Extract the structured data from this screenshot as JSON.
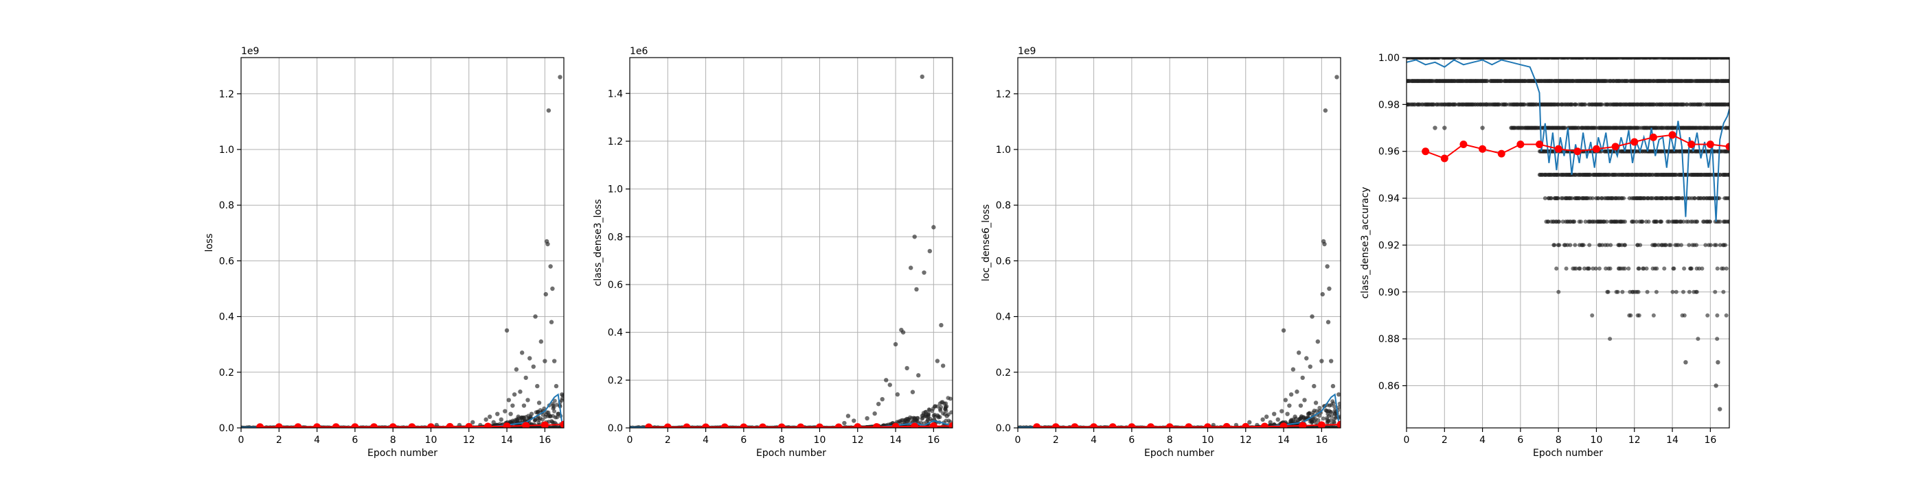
{
  "colors": {
    "scatter": "#222222",
    "line": "#1f77b4",
    "marker": "#ff0000",
    "grid": "#b0b0b0"
  },
  "chart_data": [
    {
      "type": "scatter",
      "xlabel": "Epoch number",
      "ylabel": "loss",
      "offset_label": "1e9",
      "xlim": [
        0,
        17
      ],
      "ylim": [
        0,
        1.33
      ],
      "xticks": [
        0,
        2,
        4,
        6,
        8,
        10,
        12,
        14,
        16
      ],
      "yticks": [
        0.0,
        0.2,
        0.4,
        0.6,
        0.8,
        1.0,
        1.2
      ],
      "ytick_labels": [
        "0.0",
        "0.2",
        "0.4",
        "0.6",
        "0.8",
        "1.0",
        "1.2"
      ],
      "grid": true,
      "scatter_points": [
        [
          10.3,
          0.01
        ],
        [
          11.5,
          0.01
        ],
        [
          12.2,
          0.02
        ],
        [
          12.6,
          0.01
        ],
        [
          12.9,
          0.03
        ],
        [
          13.1,
          0.04
        ],
        [
          13.3,
          0.02
        ],
        [
          13.5,
          0.05
        ],
        [
          13.7,
          0.03
        ],
        [
          13.9,
          0.06
        ],
        [
          14.0,
          0.35
        ],
        [
          14.1,
          0.1
        ],
        [
          14.2,
          0.05
        ],
        [
          14.3,
          0.08
        ],
        [
          14.4,
          0.12
        ],
        [
          14.5,
          0.21
        ],
        [
          14.6,
          0.04
        ],
        [
          14.7,
          0.13
        ],
        [
          14.8,
          0.27
        ],
        [
          14.9,
          0.08
        ],
        [
          15.0,
          0.18
        ],
        [
          15.1,
          0.1
        ],
        [
          15.2,
          0.25
        ],
        [
          15.3,
          0.05
        ],
        [
          15.4,
          0.22
        ],
        [
          15.5,
          0.4
        ],
        [
          15.6,
          0.15
        ],
        [
          15.7,
          0.09
        ],
        [
          15.8,
          0.31
        ],
        [
          15.9,
          0.06
        ],
        [
          16.0,
          0.24
        ],
        [
          16.05,
          0.48
        ],
        [
          16.1,
          0.67
        ],
        [
          16.15,
          0.66
        ],
        [
          16.2,
          1.14
        ],
        [
          16.3,
          0.58
        ],
        [
          16.35,
          0.38
        ],
        [
          16.4,
          0.5
        ],
        [
          16.5,
          0.24
        ],
        [
          16.6,
          0.15
        ],
        [
          16.7,
          0.05
        ],
        [
          16.8,
          1.26
        ],
        [
          16.9,
          0.12
        ]
      ],
      "line_series": [
        [
          0,
          0.002
        ],
        [
          13,
          0.003
        ],
        [
          14,
          0.01
        ],
        [
          15,
          0.02
        ],
        [
          15.5,
          0.04
        ],
        [
          16,
          0.06
        ],
        [
          16.3,
          0.09
        ],
        [
          16.5,
          0.11
        ],
        [
          16.7,
          0.12
        ],
        [
          16.9,
          0.02
        ]
      ],
      "marker_series": [
        [
          1,
          0.003
        ],
        [
          2,
          0.003
        ],
        [
          3,
          0.003
        ],
        [
          4,
          0.003
        ],
        [
          5,
          0.003
        ],
        [
          6,
          0.003
        ],
        [
          7,
          0.003
        ],
        [
          8,
          0.003
        ],
        [
          9,
          0.003
        ],
        [
          10,
          0.003
        ],
        [
          11,
          0.004
        ],
        [
          12,
          0.004
        ],
        [
          13,
          0.005
        ],
        [
          14,
          0.006
        ],
        [
          15,
          0.008
        ],
        [
          16,
          0.01
        ],
        [
          17,
          0.012
        ]
      ]
    },
    {
      "type": "scatter",
      "xlabel": "Epoch number",
      "ylabel": "class_dense3_loss",
      "offset_label": "1e6",
      "xlim": [
        0,
        17
      ],
      "ylim": [
        0,
        1.55
      ],
      "xticks": [
        0,
        2,
        4,
        6,
        8,
        10,
        12,
        14,
        16
      ],
      "yticks": [
        0.0,
        0.2,
        0.4,
        0.6,
        0.8,
        1.0,
        1.2,
        1.4
      ],
      "ytick_labels": [
        "0.0",
        "0.2",
        "0.4",
        "0.6",
        "0.8",
        "1.0",
        "1.2",
        "1.4"
      ],
      "grid": true,
      "scatter_points": [
        [
          11.3,
          0.02
        ],
        [
          11.5,
          0.05
        ],
        [
          11.8,
          0.03
        ],
        [
          12.0,
          0.01
        ],
        [
          12.5,
          0.04
        ],
        [
          12.9,
          0.06
        ],
        [
          13.1,
          0.1
        ],
        [
          13.3,
          0.12
        ],
        [
          13.5,
          0.2
        ],
        [
          13.7,
          0.18
        ],
        [
          14.0,
          0.35
        ],
        [
          14.1,
          0.14
        ],
        [
          14.3,
          0.41
        ],
        [
          14.4,
          0.4
        ],
        [
          14.6,
          0.25
        ],
        [
          14.8,
          0.67
        ],
        [
          14.9,
          0.15
        ],
        [
          15.0,
          0.8
        ],
        [
          15.1,
          0.58
        ],
        [
          15.2,
          0.22
        ],
        [
          15.4,
          1.47
        ],
        [
          15.5,
          0.65
        ],
        [
          15.8,
          0.74
        ],
        [
          16.0,
          0.84
        ],
        [
          16.2,
          0.28
        ],
        [
          16.4,
          0.43
        ],
        [
          16.5,
          0.26
        ],
        [
          16.7,
          0.05
        ]
      ],
      "line_series": [
        [
          0,
          0.002
        ],
        [
          13,
          0.003
        ],
        [
          14,
          0.01
        ],
        [
          15,
          0.02
        ],
        [
          15.5,
          0.01
        ],
        [
          16,
          0.03
        ],
        [
          16.5,
          0.02
        ],
        [
          16.9,
          0.01
        ]
      ],
      "marker_series": [
        [
          1,
          0.003
        ],
        [
          2,
          0.003
        ],
        [
          3,
          0.003
        ],
        [
          4,
          0.003
        ],
        [
          5,
          0.003
        ],
        [
          6,
          0.003
        ],
        [
          7,
          0.003
        ],
        [
          8,
          0.003
        ],
        [
          9,
          0.003
        ],
        [
          10,
          0.003
        ],
        [
          11,
          0.003
        ],
        [
          12,
          0.004
        ],
        [
          13,
          0.004
        ],
        [
          14,
          0.005
        ],
        [
          15,
          0.006
        ],
        [
          16,
          0.007
        ],
        [
          17,
          0.008
        ]
      ]
    },
    {
      "type": "scatter",
      "xlabel": "Epoch number",
      "ylabel": "loc_dense6_loss",
      "offset_label": "1e9",
      "xlim": [
        0,
        17
      ],
      "ylim": [
        0,
        1.33
      ],
      "xticks": [
        0,
        2,
        4,
        6,
        8,
        10,
        12,
        14,
        16
      ],
      "yticks": [
        0.0,
        0.2,
        0.4,
        0.6,
        0.8,
        1.0,
        1.2
      ],
      "ytick_labels": [
        "0.0",
        "0.2",
        "0.4",
        "0.6",
        "0.8",
        "1.0",
        "1.2"
      ],
      "grid": true,
      "scatter_points": [
        [
          10.3,
          0.01
        ],
        [
          11.5,
          0.01
        ],
        [
          12.2,
          0.02
        ],
        [
          12.6,
          0.01
        ],
        [
          12.9,
          0.03
        ],
        [
          13.1,
          0.04
        ],
        [
          13.3,
          0.02
        ],
        [
          13.5,
          0.05
        ],
        [
          13.7,
          0.03
        ],
        [
          13.9,
          0.06
        ],
        [
          14.0,
          0.35
        ],
        [
          14.1,
          0.1
        ],
        [
          14.2,
          0.05
        ],
        [
          14.3,
          0.08
        ],
        [
          14.4,
          0.12
        ],
        [
          14.5,
          0.21
        ],
        [
          14.6,
          0.04
        ],
        [
          14.7,
          0.13
        ],
        [
          14.8,
          0.27
        ],
        [
          14.9,
          0.08
        ],
        [
          15.0,
          0.18
        ],
        [
          15.1,
          0.1
        ],
        [
          15.2,
          0.25
        ],
        [
          15.3,
          0.05
        ],
        [
          15.4,
          0.22
        ],
        [
          15.5,
          0.4
        ],
        [
          15.6,
          0.15
        ],
        [
          15.7,
          0.09
        ],
        [
          15.8,
          0.31
        ],
        [
          15.9,
          0.06
        ],
        [
          16.0,
          0.24
        ],
        [
          16.05,
          0.48
        ],
        [
          16.1,
          0.67
        ],
        [
          16.15,
          0.66
        ],
        [
          16.2,
          1.14
        ],
        [
          16.3,
          0.58
        ],
        [
          16.35,
          0.38
        ],
        [
          16.4,
          0.5
        ],
        [
          16.5,
          0.24
        ],
        [
          16.6,
          0.15
        ],
        [
          16.7,
          0.05
        ],
        [
          16.8,
          1.26
        ],
        [
          16.9,
          0.12
        ]
      ],
      "line_series": [
        [
          0,
          0.002
        ],
        [
          13,
          0.003
        ],
        [
          14,
          0.01
        ],
        [
          15,
          0.02
        ],
        [
          15.5,
          0.04
        ],
        [
          16,
          0.06
        ],
        [
          16.3,
          0.09
        ],
        [
          16.5,
          0.11
        ],
        [
          16.7,
          0.12
        ],
        [
          16.9,
          0.02
        ]
      ],
      "marker_series": [
        [
          1,
          0.003
        ],
        [
          2,
          0.003
        ],
        [
          3,
          0.003
        ],
        [
          4,
          0.003
        ],
        [
          5,
          0.003
        ],
        [
          6,
          0.003
        ],
        [
          7,
          0.003
        ],
        [
          8,
          0.003
        ],
        [
          9,
          0.003
        ],
        [
          10,
          0.003
        ],
        [
          11,
          0.004
        ],
        [
          12,
          0.004
        ],
        [
          13,
          0.005
        ],
        [
          14,
          0.006
        ],
        [
          15,
          0.008
        ],
        [
          16,
          0.01
        ],
        [
          17,
          0.012
        ]
      ]
    },
    {
      "type": "scatter",
      "xlabel": "Epoch number",
      "ylabel": "class_dense3_accuracy",
      "offset_label": "",
      "xlim": [
        0,
        17
      ],
      "ylim": [
        0.842,
        1.0
      ],
      "xticks": [
        0,
        2,
        4,
        6,
        8,
        10,
        12,
        14,
        16
      ],
      "yticks": [
        0.86,
        0.88,
        0.9,
        0.92,
        0.94,
        0.96,
        0.98,
        1.0
      ],
      "ytick_labels": [
        "0.86",
        "0.88",
        "0.90",
        "0.92",
        "0.94",
        "0.96",
        "0.98",
        "1.00"
      ],
      "grid": true,
      "accuracy_bands": [
        {
          "y": 1.0,
          "x_start": 0.0,
          "x_end": 17.0,
          "density": 0.9
        },
        {
          "y": 0.99,
          "x_start": 0.0,
          "x_end": 17.0,
          "density": 0.9
        },
        {
          "y": 0.98,
          "x_start": 0.0,
          "x_end": 17.0,
          "density": 0.75
        },
        {
          "y": 0.97,
          "x_start": 5.5,
          "x_end": 17.0,
          "density": 0.8
        },
        {
          "y": 0.96,
          "x_start": 7.0,
          "x_end": 17.0,
          "density": 0.85
        },
        {
          "y": 0.95,
          "x_start": 7.0,
          "x_end": 17.0,
          "density": 0.85
        },
        {
          "y": 0.94,
          "x_start": 7.3,
          "x_end": 17.0,
          "density": 0.55
        },
        {
          "y": 0.93,
          "x_start": 7.3,
          "x_end": 17.0,
          "density": 0.45
        },
        {
          "y": 0.92,
          "x_start": 7.5,
          "x_end": 17.0,
          "density": 0.3
        },
        {
          "y": 0.91,
          "x_start": 7.8,
          "x_end": 17.0,
          "density": 0.18
        },
        {
          "y": 0.9,
          "x_start": 8.0,
          "x_end": 17.0,
          "density": 0.1
        },
        {
          "y": 0.89,
          "x_start": 8.0,
          "x_end": 17.0,
          "density": 0.06
        },
        {
          "y": 0.88,
          "x_start": 8.5,
          "x_end": 17.0,
          "density": 0.04
        }
      ],
      "scatter_points": [
        [
          1.5,
          0.97
        ],
        [
          2.0,
          0.97
        ],
        [
          4.0,
          0.97
        ],
        [
          4.2,
          0.98
        ],
        [
          14.7,
          0.87
        ],
        [
          16.4,
          0.87
        ],
        [
          16.5,
          0.85
        ],
        [
          16.3,
          0.86
        ]
      ],
      "line_series": [
        [
          0,
          0.998
        ],
        [
          0.5,
          0.999
        ],
        [
          1,
          0.997
        ],
        [
          1.5,
          0.998
        ],
        [
          2,
          0.996
        ],
        [
          2.5,
          0.999
        ],
        [
          3,
          0.997
        ],
        [
          3.5,
          0.998
        ],
        [
          4,
          0.999
        ],
        [
          4.5,
          0.997
        ],
        [
          5,
          0.999
        ],
        [
          5.5,
          0.998
        ],
        [
          6,
          0.997
        ],
        [
          6.5,
          0.996
        ],
        [
          6.8,
          0.99
        ],
        [
          7.0,
          0.985
        ],
        [
          7.1,
          0.96
        ],
        [
          7.3,
          0.972
        ],
        [
          7.5,
          0.955
        ],
        [
          7.7,
          0.968
        ],
        [
          7.9,
          0.952
        ],
        [
          8.1,
          0.966
        ],
        [
          8.3,
          0.958
        ],
        [
          8.5,
          0.97
        ],
        [
          8.7,
          0.95
        ],
        [
          8.9,
          0.963
        ],
        [
          9.1,
          0.955
        ],
        [
          9.3,
          0.968
        ],
        [
          9.5,
          0.957
        ],
        [
          9.7,
          0.964
        ],
        [
          9.9,
          0.953
        ],
        [
          10.1,
          0.966
        ],
        [
          10.3,
          0.96
        ],
        [
          10.5,
          0.968
        ],
        [
          10.7,
          0.955
        ],
        [
          10.9,
          0.962
        ],
        [
          11.1,
          0.958
        ],
        [
          11.3,
          0.966
        ],
        [
          11.5,
          0.96
        ],
        [
          11.7,
          0.969
        ],
        [
          11.9,
          0.955
        ],
        [
          12.1,
          0.964
        ],
        [
          12.3,
          0.96
        ],
        [
          12.5,
          0.966
        ],
        [
          12.7,
          0.96
        ],
        [
          12.9,
          0.97
        ],
        [
          13.1,
          0.958
        ],
        [
          13.3,
          0.965
        ],
        [
          13.5,
          0.966
        ],
        [
          13.7,
          0.953
        ],
        [
          13.9,
          0.967
        ],
        [
          14.1,
          0.96
        ],
        [
          14.3,
          0.973
        ],
        [
          14.5,
          0.962
        ],
        [
          14.7,
          0.932
        ],
        [
          14.9,
          0.966
        ],
        [
          15.1,
          0.96
        ],
        [
          15.3,
          0.968
        ],
        [
          15.5,
          0.957
        ],
        [
          15.7,
          0.964
        ],
        [
          15.9,
          0.953
        ],
        [
          16.1,
          0.963
        ],
        [
          16.3,
          0.93
        ],
        [
          16.5,
          0.965
        ],
        [
          16.7,
          0.972
        ],
        [
          16.9,
          0.975
        ],
        [
          17.0,
          0.978
        ]
      ],
      "marker_series": [
        [
          1,
          0.96
        ],
        [
          2,
          0.957
        ],
        [
          3,
          0.963
        ],
        [
          4,
          0.961
        ],
        [
          5,
          0.959
        ],
        [
          6,
          0.963
        ],
        [
          7,
          0.963
        ],
        [
          8,
          0.961
        ],
        [
          9,
          0.96
        ],
        [
          10,
          0.961
        ],
        [
          11,
          0.962
        ],
        [
          12,
          0.964
        ],
        [
          13,
          0.966
        ],
        [
          14,
          0.967
        ],
        [
          15,
          0.963
        ],
        [
          16,
          0.963
        ],
        [
          17,
          0.962
        ]
      ]
    }
  ]
}
